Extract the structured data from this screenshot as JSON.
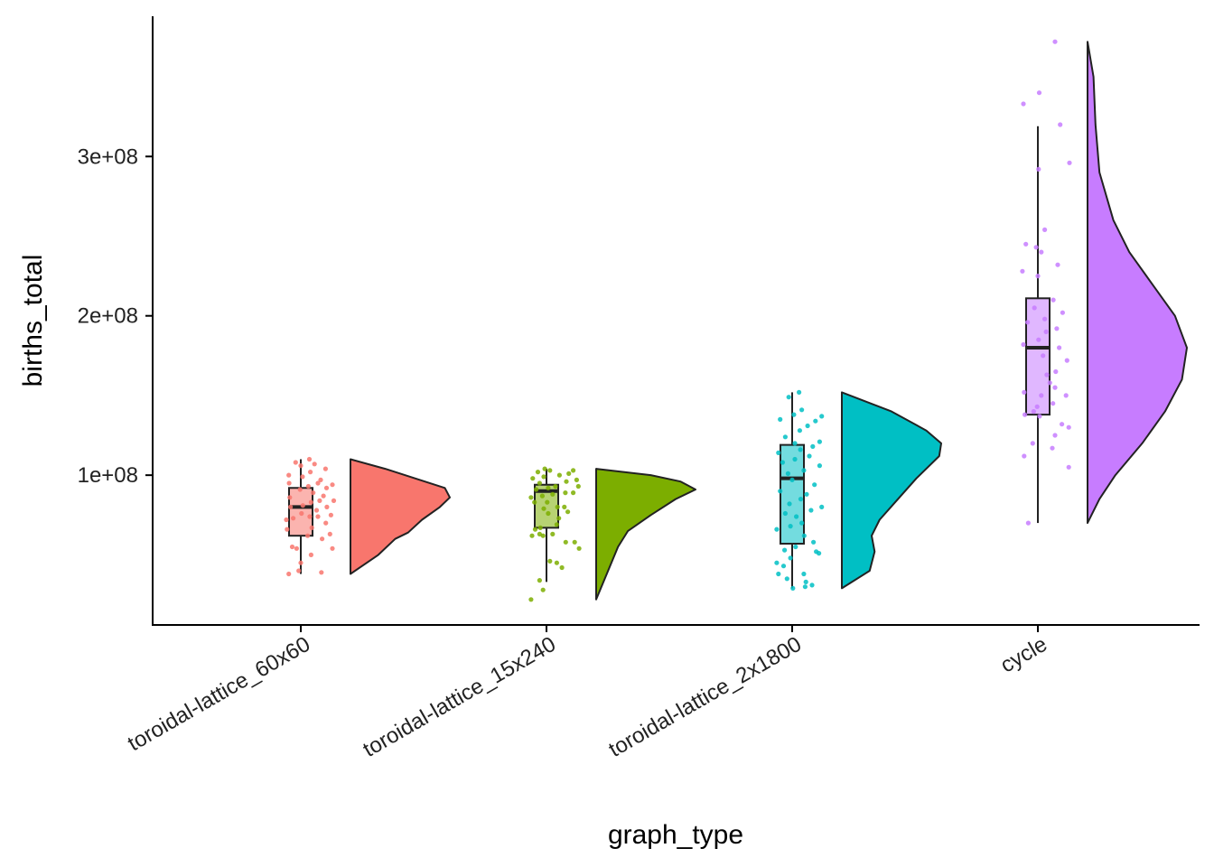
{
  "chart_data": {
    "type": "raincloud",
    "xlabel": "graph_type",
    "ylabel": "births_total",
    "yticks": [
      {
        "value": 100000000,
        "label": "1e+08"
      },
      {
        "value": 200000000,
        "label": "2e+08"
      },
      {
        "value": 300000000,
        "label": "3e+08"
      }
    ],
    "ylim": [
      6000000,
      388000000
    ],
    "grid": false,
    "legend": "none",
    "categories": [
      {
        "name": "toroidal-lattice_60x60",
        "color": "#F8766D",
        "box": {
          "min": 38000000,
          "q1": 62000000,
          "median": 80000000,
          "q3": 92000000,
          "max": 110000000
        },
        "points": [
          [
            -0.35,
            38
          ],
          [
            -0.06,
            40
          ],
          [
            0.6,
            39
          ],
          [
            0.92,
            54
          ],
          [
            0.3,
            50
          ],
          [
            0.0,
            45
          ],
          [
            -0.25,
            55
          ],
          [
            -0.12,
            54
          ],
          [
            0.62,
            60
          ],
          [
            0.85,
            63
          ],
          [
            0.2,
            62
          ],
          [
            -0.4,
            66
          ],
          [
            0.32,
            67
          ],
          [
            0.73,
            70
          ],
          [
            -0.42,
            72
          ],
          [
            -0.22,
            73
          ],
          [
            0.26,
            74
          ],
          [
            0.5,
            74
          ],
          [
            0.88,
            75
          ],
          [
            0.02,
            76
          ],
          [
            0.46,
            78
          ],
          [
            0.06,
            81
          ],
          [
            -0.3,
            80
          ],
          [
            0.76,
            80
          ],
          [
            0.3,
            83
          ],
          [
            0.55,
            84
          ],
          [
            0.96,
            84
          ],
          [
            -0.32,
            86
          ],
          [
            0.66,
            87
          ],
          [
            0.36,
            89
          ],
          [
            -0.02,
            91
          ],
          [
            0.75,
            92
          ],
          [
            0.22,
            93
          ],
          [
            -0.34,
            95
          ],
          [
            0.5,
            95
          ],
          [
            0.92,
            94
          ],
          [
            0.58,
            97
          ],
          [
            -0.35,
            100
          ],
          [
            0.05,
            99
          ],
          [
            0.28,
            102
          ],
          [
            0.72,
            104
          ],
          [
            0.0,
            106
          ],
          [
            0.4,
            107
          ],
          [
            -0.15,
            108
          ],
          [
            0.25,
            110
          ]
        ],
        "density": [
          [
            38,
            0.0
          ],
          [
            50,
            0.28
          ],
          [
            60,
            0.45
          ],
          [
            64,
            0.58
          ],
          [
            72,
            0.72
          ],
          [
            80,
            0.9
          ],
          [
            86,
            1.0
          ],
          [
            92,
            0.95
          ],
          [
            98,
            0.65
          ],
          [
            104,
            0.35
          ],
          [
            110,
            0.0
          ]
        ]
      },
      {
        "name": "toroidal-lattice_15x240",
        "color": "#7CAE00",
        "box": {
          "min": 33000000,
          "q1": 67000000,
          "median": 90000000,
          "q3": 94000000,
          "max": 104000000
        },
        "points": [
          [
            -0.45,
            22
          ],
          [
            -0.1,
            28
          ],
          [
            -0.2,
            34
          ],
          [
            0.45,
            42
          ],
          [
            0.3,
            45
          ],
          [
            0.1,
            46
          ],
          [
            0.95,
            54
          ],
          [
            0.56,
            58
          ],
          [
            0.82,
            58
          ],
          [
            -0.42,
            62
          ],
          [
            -0.2,
            63
          ],
          [
            -0.1,
            62
          ],
          [
            0.18,
            63
          ],
          [
            -0.33,
            66
          ],
          [
            -0.18,
            67
          ],
          [
            0.3,
            69
          ],
          [
            0.36,
            73
          ],
          [
            0.05,
            76
          ],
          [
            0.62,
            77
          ],
          [
            -0.08,
            79
          ],
          [
            0.32,
            80
          ],
          [
            0.52,
            80
          ],
          [
            -0.35,
            83
          ],
          [
            0.02,
            83
          ],
          [
            -0.45,
            86
          ],
          [
            -0.12,
            87
          ],
          [
            0.18,
            88
          ],
          [
            0.55,
            89
          ],
          [
            0.78,
            89
          ],
          [
            -0.3,
            91
          ],
          [
            0.05,
            92
          ],
          [
            0.26,
            93
          ],
          [
            0.93,
            93
          ],
          [
            -0.2,
            95
          ],
          [
            0.58,
            96
          ],
          [
            0.88,
            97
          ],
          [
            -0.4,
            98
          ],
          [
            -0.08,
            99
          ],
          [
            0.38,
            100
          ],
          [
            0.65,
            101
          ],
          [
            -0.25,
            102
          ],
          [
            0.1,
            103
          ],
          [
            0.78,
            103
          ],
          [
            -0.05,
            104
          ]
        ],
        "density": [
          [
            22,
            0.0
          ],
          [
            40,
            0.12
          ],
          [
            55,
            0.22
          ],
          [
            65,
            0.32
          ],
          [
            75,
            0.55
          ],
          [
            85,
            0.8
          ],
          [
            91,
            1.0
          ],
          [
            96,
            0.85
          ],
          [
            100,
            0.55
          ],
          [
            104,
            0.0
          ]
        ]
      },
      {
        "name": "toroidal-lattice_2x1800",
        "color": "#00BFC4",
        "box": {
          "min": 29000000,
          "q1": 57000000,
          "median": 98000000,
          "q3": 119000000,
          "max": 152000000
        },
        "points": [
          [
            0.02,
            29
          ],
          [
            0.38,
            30
          ],
          [
            0.58,
            31
          ],
          [
            0.4,
            33
          ],
          [
            -0.15,
            35
          ],
          [
            -0.4,
            38
          ],
          [
            0.34,
            38
          ],
          [
            -0.25,
            43
          ],
          [
            -0.45,
            45
          ],
          [
            -0.05,
            48
          ],
          [
            0.7,
            52
          ],
          [
            0.78,
            51
          ],
          [
            -0.22,
            53
          ],
          [
            0.1,
            55
          ],
          [
            0.62,
            58
          ],
          [
            0.35,
            62
          ],
          [
            -0.45,
            66
          ],
          [
            -0.05,
            68
          ],
          [
            0.28,
            70
          ],
          [
            0.12,
            74
          ],
          [
            -0.2,
            76
          ],
          [
            0.55,
            78
          ],
          [
            0.86,
            80
          ],
          [
            -0.08,
            82
          ],
          [
            0.25,
            85
          ],
          [
            0.42,
            88
          ],
          [
            -0.35,
            90
          ],
          [
            0.65,
            94
          ],
          [
            0.0,
            97
          ],
          [
            -0.12,
            101
          ],
          [
            0.34,
            103
          ],
          [
            0.8,
            106
          ],
          [
            -0.28,
            108
          ],
          [
            0.08,
            110
          ],
          [
            0.5,
            112
          ],
          [
            -0.4,
            114
          ],
          [
            0.24,
            116
          ],
          [
            0.6,
            118
          ],
          [
            0.08,
            120
          ],
          [
            0.8,
            121
          ],
          [
            -0.2,
            124
          ],
          [
            0.22,
            128
          ],
          [
            0.45,
            131
          ],
          [
            -0.35,
            135
          ],
          [
            0.68,
            134
          ],
          [
            0.86,
            137
          ],
          [
            0.05,
            138
          ],
          [
            0.28,
            141
          ],
          [
            -0.1,
            149
          ],
          [
            0.2,
            152
          ]
        ],
        "density": [
          [
            29,
            0.0
          ],
          [
            40,
            0.28
          ],
          [
            52,
            0.33
          ],
          [
            62,
            0.3
          ],
          [
            72,
            0.38
          ],
          [
            84,
            0.55
          ],
          [
            98,
            0.75
          ],
          [
            112,
            0.98
          ],
          [
            120,
            1.0
          ],
          [
            128,
            0.85
          ],
          [
            140,
            0.5
          ],
          [
            152,
            0.0
          ]
        ]
      },
      {
        "name": "cycle",
        "color": "#C77CFF",
        "box": {
          "min": 70000000,
          "q1": 138000000,
          "median": 180000000,
          "q3": 211000000,
          "max": 319000000
        },
        "points": [
          [
            -0.28,
            70
          ],
          [
            0.9,
            105
          ],
          [
            -0.4,
            112
          ],
          [
            0.42,
            117
          ],
          [
            -0.15,
            120
          ],
          [
            0.5,
            125
          ],
          [
            0.9,
            130
          ],
          [
            0.7,
            132
          ],
          [
            -0.38,
            138
          ],
          [
            0.05,
            137
          ],
          [
            -0.12,
            140
          ],
          [
            -0.02,
            143
          ],
          [
            0.44,
            145
          ],
          [
            0.1,
            150
          ],
          [
            0.82,
            150
          ],
          [
            -0.4,
            152
          ],
          [
            0.5,
            155
          ],
          [
            0.35,
            158
          ],
          [
            0.26,
            163
          ],
          [
            0.52,
            165
          ],
          [
            0.85,
            172
          ],
          [
            0.15,
            175
          ],
          [
            0.62,
            180
          ],
          [
            -0.42,
            182
          ],
          [
            0.02,
            185
          ],
          [
            0.24,
            190
          ],
          [
            0.55,
            192
          ],
          [
            -0.3,
            196
          ],
          [
            0.2,
            198
          ],
          [
            0.72,
            202
          ],
          [
            -0.1,
            205
          ],
          [
            0.45,
            210
          ],
          [
            0.0,
            225
          ],
          [
            -0.45,
            228
          ],
          [
            0.58,
            232
          ],
          [
            0.1,
            240
          ],
          [
            -0.05,
            243
          ],
          [
            -0.35,
            245
          ],
          [
            0.2,
            254
          ],
          [
            0.02,
            292
          ],
          [
            0.92,
            296
          ],
          [
            0.65,
            320
          ],
          [
            -0.42,
            333
          ],
          [
            0.04,
            340
          ],
          [
            0.5,
            372
          ]
        ],
        "density": [
          [
            70,
            0.0
          ],
          [
            85,
            0.12
          ],
          [
            100,
            0.28
          ],
          [
            120,
            0.55
          ],
          [
            140,
            0.78
          ],
          [
            160,
            0.95
          ],
          [
            180,
            1.0
          ],
          [
            200,
            0.88
          ],
          [
            220,
            0.65
          ],
          [
            240,
            0.42
          ],
          [
            260,
            0.26
          ],
          [
            290,
            0.12
          ],
          [
            320,
            0.08
          ],
          [
            350,
            0.06
          ],
          [
            372,
            0.0
          ]
        ]
      }
    ]
  }
}
